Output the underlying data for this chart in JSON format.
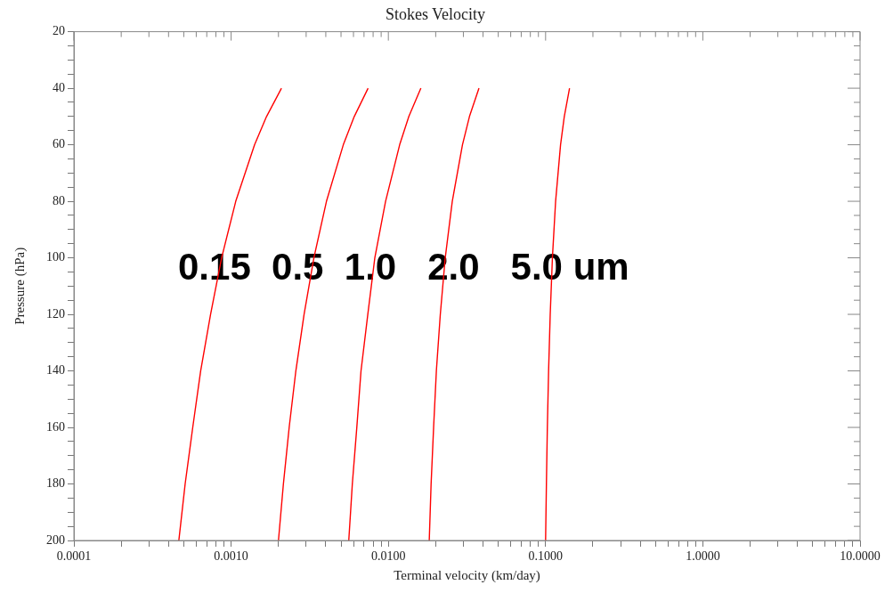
{
  "chart_data": {
    "type": "line",
    "title": "Stokes Velocity",
    "xlabel": "Terminal velocity (km/day)",
    "ylabel": "Pressure (hPa)",
    "log": "x",
    "grid": false,
    "legend": false,
    "marker": "none",
    "xlim": [
      0.0001,
      10
    ],
    "ylim": [
      200,
      20
    ],
    "xticks": [
      {
        "value": 0.0001,
        "label": "0.0001"
      },
      {
        "value": 0.0002,
        "label": null
      },
      {
        "value": 0.0003,
        "label": null
      },
      {
        "value": 0.0004,
        "label": null
      },
      {
        "value": 0.0005,
        "label": null
      },
      {
        "value": 0.0006,
        "label": null
      },
      {
        "value": 0.0007,
        "label": null
      },
      {
        "value": 0.0008,
        "label": null
      },
      {
        "value": 0.0009,
        "label": null
      },
      {
        "value": 0.001,
        "label": "0.0010"
      },
      {
        "value": 0.002,
        "label": null
      },
      {
        "value": 0.003,
        "label": null
      },
      {
        "value": 0.004,
        "label": null
      },
      {
        "value": 0.005,
        "label": null
      },
      {
        "value": 0.006,
        "label": null
      },
      {
        "value": 0.007,
        "label": null
      },
      {
        "value": 0.008,
        "label": null
      },
      {
        "value": 0.009,
        "label": null
      },
      {
        "value": 0.01,
        "label": "0.0100"
      },
      {
        "value": 0.02,
        "label": null
      },
      {
        "value": 0.03,
        "label": null
      },
      {
        "value": 0.04,
        "label": null
      },
      {
        "value": 0.05,
        "label": null
      },
      {
        "value": 0.06,
        "label": null
      },
      {
        "value": 0.07,
        "label": null
      },
      {
        "value": 0.08,
        "label": null
      },
      {
        "value": 0.09,
        "label": null
      },
      {
        "value": 0.1,
        "label": "0.1000"
      },
      {
        "value": 0.2,
        "label": null
      },
      {
        "value": 0.3,
        "label": null
      },
      {
        "value": 0.4,
        "label": null
      },
      {
        "value": 0.5,
        "label": null
      },
      {
        "value": 0.6,
        "label": null
      },
      {
        "value": 0.7,
        "label": null
      },
      {
        "value": 0.8,
        "label": null
      },
      {
        "value": 0.9,
        "label": null
      },
      {
        "value": 1,
        "label": "1.0000"
      },
      {
        "value": 2,
        "label": null
      },
      {
        "value": 3,
        "label": null
      },
      {
        "value": 4,
        "label": null
      },
      {
        "value": 5,
        "label": null
      },
      {
        "value": 6,
        "label": null
      },
      {
        "value": 7,
        "label": null
      },
      {
        "value": 8,
        "label": null
      },
      {
        "value": 9,
        "label": null
      },
      {
        "value": 10,
        "label": "10.0000"
      }
    ],
    "yticks": [
      20,
      {
        "value": 25,
        "label": null
      },
      {
        "value": 30,
        "label": null
      },
      {
        "value": 35,
        "label": null
      },
      40,
      {
        "value": 45,
        "label": null
      },
      {
        "value": 50,
        "label": null
      },
      {
        "value": 55,
        "label": null
      },
      60,
      {
        "value": 65,
        "label": null
      },
      {
        "value": 70,
        "label": null
      },
      {
        "value": 75,
        "label": null
      },
      80,
      {
        "value": 85,
        "label": null
      },
      {
        "value": 90,
        "label": null
      },
      {
        "value": 95,
        "label": null
      },
      100,
      {
        "value": 105,
        "label": null
      },
      {
        "value": 110,
        "label": null
      },
      {
        "value": 115,
        "label": null
      },
      120,
      {
        "value": 125,
        "label": null
      },
      {
        "value": 130,
        "label": null
      },
      {
        "value": 135,
        "label": null
      },
      140,
      {
        "value": 145,
        "label": null
      },
      {
        "value": 150,
        "label": null
      },
      {
        "value": 155,
        "label": null
      },
      160,
      {
        "value": 165,
        "label": null
      },
      {
        "value": 170,
        "label": null
      },
      {
        "value": 175,
        "label": null
      },
      180,
      {
        "value": 185,
        "label": null
      },
      {
        "value": 190,
        "label": null
      },
      {
        "value": 195,
        "label": null
      },
      200
    ],
    "annotations": [
      "0.15  0.5  1.0   2.0   5.0 um"
    ],
    "series": [
      {
        "color": "#ff0000",
        "x": [
          0.00209,
          0.00168,
          0.00141,
          0.00107,
          0.00087,
          0.00074,
          0.00064,
          0.00057,
          0.00051,
          0.000465
        ],
        "values": [
          40,
          50,
          60,
          80,
          100,
          120,
          140,
          160,
          180,
          200
        ]
      },
      {
        "color": "#ff0000",
        "x": [
          0.00743,
          0.00607,
          0.00517,
          0.00404,
          0.00336,
          0.00291,
          0.00258,
          0.00234,
          0.00215,
          0.002
        ],
        "values": [
          40,
          50,
          60,
          80,
          100,
          120,
          140,
          160,
          180,
          200
        ]
      },
      {
        "color": "#ff0000",
        "x": [
          0.0161,
          0.0135,
          0.0118,
          0.0096,
          0.0082,
          0.0074,
          0.0067,
          0.0063,
          0.0059,
          0.0056
        ],
        "values": [
          40,
          50,
          60,
          80,
          100,
          120,
          140,
          160,
          180,
          200
        ]
      },
      {
        "color": "#ff0000",
        "x": [
          0.0377,
          0.0328,
          0.0296,
          0.0255,
          0.023,
          0.0214,
          0.0202,
          0.0194,
          0.0187,
          0.0182
        ],
        "values": [
          40,
          50,
          60,
          80,
          100,
          120,
          140,
          160,
          180,
          200
        ]
      },
      {
        "color": "#ff0000",
        "x": [
          0.142,
          0.1315,
          0.1245,
          0.1158,
          0.1105,
          0.107,
          0.1045,
          0.1026,
          0.1012,
          0.1
        ],
        "values": [
          40,
          50,
          60,
          80,
          100,
          120,
          140,
          160,
          180,
          200
        ]
      }
    ]
  }
}
